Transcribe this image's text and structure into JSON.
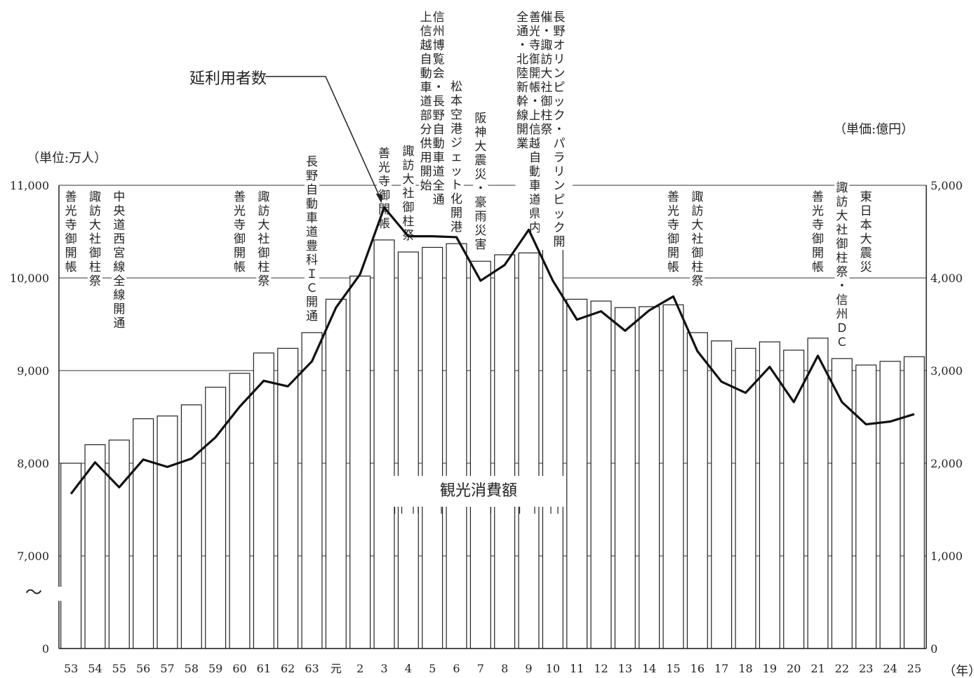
{
  "chart_data": {
    "type": "bar",
    "left_unit": "（単位:万人）",
    "right_unit": "（単価:億円）",
    "x_unit": "（年）",
    "break_mark": "〜",
    "x": [
      "53",
      "54",
      "55",
      "56",
      "57",
      "58",
      "59",
      "60",
      "61",
      "62",
      "63",
      "元",
      "2",
      "3",
      "4",
      "5",
      "6",
      "7",
      "8",
      "9",
      "10",
      "11",
      "12",
      "13",
      "14",
      "15",
      "16",
      "17",
      "18",
      "19",
      "20",
      "21",
      "22",
      "23",
      "24",
      "25"
    ],
    "left_axis": {
      "ticks": [
        {
          "value": 0,
          "label": "0"
        },
        {
          "value": 7000,
          "label": "7,000"
        },
        {
          "value": 8000,
          "label": "8,000"
        },
        {
          "value": 9000,
          "label": "9,000"
        },
        {
          "value": 10000,
          "label": "10,000"
        },
        {
          "value": 11000,
          "label": "11,000"
        }
      ],
      "broken_below": 7000
    },
    "right_axis": {
      "ylim": [
        0,
        5000
      ],
      "ticks": [
        {
          "value": 0,
          "label": "0"
        },
        {
          "value": 1000,
          "label": "1,000"
        },
        {
          "value": 2000,
          "label": "2,000"
        },
        {
          "value": 3000,
          "label": "3,000"
        },
        {
          "value": 4000,
          "label": "4,000"
        },
        {
          "value": 5000,
          "label": "5,000"
        }
      ]
    },
    "series": [
      {
        "name": "観光消費額",
        "kind": "bar",
        "axis": "right",
        "values": [
          2000,
          2200,
          2250,
          2480,
          2510,
          2630,
          2820,
          2970,
          3190,
          3240,
          3410,
          3770,
          4020,
          4410,
          4280,
          4330,
          4370,
          4180,
          4250,
          4270,
          4570,
          3770,
          3750,
          3680,
          3690,
          3710,
          3410,
          3320,
          3240,
          3310,
          3220,
          3350,
          3130,
          3060,
          3100,
          3150
        ]
      },
      {
        "name": "延利用者数",
        "kind": "line",
        "axis": "left",
        "values": [
          7670,
          8010,
          7740,
          8040,
          7960,
          8050,
          8280,
          8610,
          8890,
          8830,
          9100,
          9680,
          10040,
          10760,
          10450,
          10450,
          10440,
          9970,
          10140,
          10520,
          9970,
          9550,
          9640,
          9430,
          9650,
          9800,
          9210,
          8880,
          8760,
          9040,
          8660,
          9160,
          8660,
          8420,
          8450,
          8530
        ]
      }
    ],
    "annotations": [
      {
        "x": "53",
        "text": "善光寺御開帳"
      },
      {
        "x": "54",
        "text": "諏訪大社御柱祭"
      },
      {
        "x": "55",
        "text": "中央道西宮線全線開通"
      },
      {
        "x": "60",
        "text": "善光寺御開帳"
      },
      {
        "x": "61",
        "text": "諏訪大社御柱祭"
      },
      {
        "x": "63",
        "text": "長野自動車道豊科ＩＣ開通"
      },
      {
        "x": "3",
        "text": "善光寺御開帳"
      },
      {
        "x": "4",
        "text": "諏訪大社御柱祭"
      },
      {
        "x": "5",
        "text": [
          "信州博覧会・長野自動車道全通",
          "上信越自動車道部分供用開始"
        ]
      },
      {
        "x": "6",
        "text": "松本空港ジェット化開港"
      },
      {
        "x": "7",
        "text": "阪神大震災・豪雨災害"
      },
      {
        "x": "9",
        "text": [
          "善光寺御開帳・上信越自動車道県内",
          "全通・北陸新幹線開業"
        ]
      },
      {
        "x": "10",
        "text": [
          "長野オリンピック・パラリンピック開",
          "催・諏訪大社御柱祭"
        ]
      },
      {
        "x": "15",
        "text": "善光寺御開帳"
      },
      {
        "x": "16",
        "text": "諏訪大社御柱祭"
      },
      {
        "x": "21",
        "text": "善光寺御開帳"
      },
      {
        "x": "22",
        "text": "諏訪大社御柱祭・信州ＤＣ"
      },
      {
        "x": "23",
        "text": "東日本大震災"
      }
    ],
    "callouts": {
      "line_label": "延利用者数",
      "bar_label": "観光消費額"
    },
    "grid": true,
    "legend": "none"
  }
}
